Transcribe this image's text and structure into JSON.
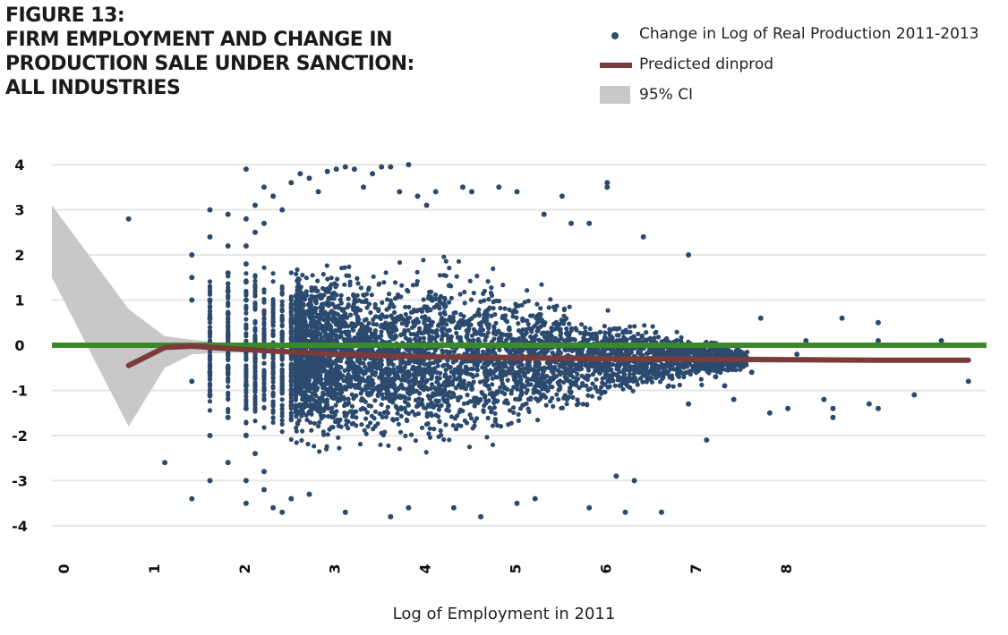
{
  "title_lines": [
    "FIGURE 13:",
    "FIRM EMPLOYMENT AND CHANGE IN",
    "PRODUCTION SALE UNDER SANCTION:",
    "ALL INDUSTRIES"
  ],
  "legend": [
    {
      "label": "Change in Log of Real Production 2011-2013",
      "kind": "dot",
      "color": "#2c4a6e"
    },
    {
      "label": "Predicted dinprod",
      "kind": "line",
      "color": "#7a3b3b"
    },
    {
      "label": "95% CI",
      "kind": "band",
      "color": "#c8c8c8"
    }
  ],
  "colors": {
    "scatter": "#2c4a6e",
    "fit": "#7a3b3b",
    "ci": "#c8c8c8",
    "zero_line": "#3a8a2a",
    "grid": "#e6e6e6"
  },
  "chart_data": {
    "type": "scatter",
    "xlabel": "Log of Employment in 2011",
    "ylabel": "",
    "xlim": [
      -0.15,
      10.2
    ],
    "ylim": [
      -4.2,
      4.2
    ],
    "x_ticks": [
      0,
      1,
      2,
      3,
      4,
      5,
      6,
      7,
      8
    ],
    "y_ticks": [
      4,
      3,
      2,
      1,
      0,
      -1,
      -2,
      -3,
      -4
    ],
    "grid": "horizontal",
    "legend_position": "top-right",
    "series": [
      {
        "name": "Change in Log of Real Production 2011-2013",
        "kind": "points",
        "note_density": "dense cloud of several thousand firms between x≈2.5 and x≈6.5 centred slightly below 0",
        "points": [
          [
            0.7,
            2.8
          ],
          [
            1.1,
            -2.6
          ],
          [
            1.4,
            -3.4
          ],
          [
            1.4,
            2.0
          ],
          [
            1.4,
            1.5
          ],
          [
            1.4,
            1.0
          ],
          [
            1.4,
            -0.8
          ],
          [
            1.6,
            3.0
          ],
          [
            1.6,
            2.4
          ],
          [
            1.6,
            1.0
          ],
          [
            1.6,
            0.6
          ],
          [
            1.6,
            -0.6
          ],
          [
            1.6,
            -1.1
          ],
          [
            1.6,
            -2.0
          ],
          [
            1.6,
            -3.0
          ],
          [
            1.8,
            2.9
          ],
          [
            1.8,
            2.2
          ],
          [
            1.8,
            1.6
          ],
          [
            1.8,
            1.2
          ],
          [
            1.8,
            0.7
          ],
          [
            1.8,
            -0.5
          ],
          [
            1.8,
            -1.6
          ],
          [
            1.8,
            -2.6
          ],
          [
            2.0,
            3.9
          ],
          [
            2.0,
            2.8
          ],
          [
            2.0,
            2.2
          ],
          [
            2.0,
            1.8
          ],
          [
            2.0,
            1.4
          ],
          [
            2.0,
            1.0
          ],
          [
            2.0,
            -0.9
          ],
          [
            2.0,
            -1.4
          ],
          [
            2.0,
            -2.0
          ],
          [
            2.0,
            -3.0
          ],
          [
            2.0,
            -3.5
          ],
          [
            2.1,
            3.1
          ],
          [
            2.1,
            2.5
          ],
          [
            2.1,
            -2.4
          ],
          [
            2.2,
            3.5
          ],
          [
            2.2,
            2.7
          ],
          [
            2.2,
            -2.8
          ],
          [
            2.2,
            -3.2
          ],
          [
            2.3,
            3.3
          ],
          [
            2.3,
            -3.6
          ],
          [
            2.4,
            3.0
          ],
          [
            2.4,
            -3.7
          ],
          [
            2.5,
            3.6
          ],
          [
            2.5,
            -3.4
          ],
          [
            2.6,
            3.8
          ],
          [
            2.7,
            3.7
          ],
          [
            2.7,
            -3.3
          ],
          [
            2.8,
            3.4
          ],
          [
            2.9,
            3.85
          ],
          [
            3.0,
            3.9
          ],
          [
            3.1,
            3.95
          ],
          [
            3.1,
            -3.7
          ],
          [
            3.2,
            3.9
          ],
          [
            3.3,
            3.5
          ],
          [
            3.4,
            3.8
          ],
          [
            3.5,
            3.95
          ],
          [
            3.6,
            3.95
          ],
          [
            3.7,
            3.4
          ],
          [
            3.8,
            4.0
          ],
          [
            3.6,
            -3.8
          ],
          [
            3.8,
            -3.6
          ],
          [
            3.9,
            3.3
          ],
          [
            4.0,
            3.1
          ],
          [
            4.1,
            3.4
          ],
          [
            4.3,
            -3.6
          ],
          [
            4.4,
            3.5
          ],
          [
            4.5,
            3.4
          ],
          [
            4.6,
            -3.8
          ],
          [
            4.8,
            3.5
          ],
          [
            5.0,
            3.4
          ],
          [
            5.0,
            -3.5
          ],
          [
            5.2,
            -3.4
          ],
          [
            5.3,
            2.9
          ],
          [
            5.5,
            3.3
          ],
          [
            5.6,
            2.7
          ],
          [
            5.8,
            2.7
          ],
          [
            5.8,
            -3.6
          ],
          [
            6.0,
            3.6
          ],
          [
            6.0,
            3.5
          ],
          [
            6.1,
            -2.9
          ],
          [
            6.2,
            -3.7
          ],
          [
            6.3,
            -3.0
          ],
          [
            6.4,
            2.4
          ],
          [
            6.6,
            -3.7
          ],
          [
            6.9,
            2.0
          ],
          [
            6.9,
            -1.3
          ],
          [
            7.1,
            -2.1
          ],
          [
            7.2,
            -0.7
          ],
          [
            7.3,
            -0.9
          ],
          [
            7.4,
            -1.2
          ],
          [
            7.6,
            -0.6
          ],
          [
            7.7,
            0.6
          ],
          [
            7.8,
            -1.5
          ],
          [
            8.0,
            -1.4
          ],
          [
            8.1,
            -0.2
          ],
          [
            8.2,
            0.1
          ],
          [
            8.4,
            -1.2
          ],
          [
            8.5,
            -1.6
          ],
          [
            8.5,
            -1.4
          ],
          [
            8.6,
            0.6
          ],
          [
            8.9,
            -1.3
          ],
          [
            9.0,
            0.5
          ],
          [
            9.0,
            0.1
          ],
          [
            9.0,
            -1.4
          ],
          [
            9.4,
            -1.1
          ],
          [
            9.7,
            0.1
          ],
          [
            10.0,
            -0.8
          ]
        ]
      },
      {
        "name": "Predicted dinprod",
        "kind": "line",
        "x": [
          0.7,
          1.1,
          1.4,
          2.0,
          3.0,
          4.0,
          5.0,
          6.0,
          7.0,
          8.0,
          9.0,
          10.0
        ],
        "y": [
          -0.45,
          -0.05,
          -0.02,
          -0.1,
          -0.2,
          -0.26,
          -0.28,
          -0.3,
          -0.31,
          -0.32,
          -0.33,
          -0.33
        ]
      },
      {
        "name": "95% CI",
        "kind": "band",
        "x": [
          -0.15,
          0.7,
          1.1,
          1.4,
          2.0,
          3.0,
          10.0
        ],
        "upper": [
          3.1,
          0.8,
          0.2,
          0.12,
          0.0,
          -0.15,
          -0.3
        ],
        "lower": [
          1.5,
          -1.8,
          -0.5,
          -0.2,
          -0.15,
          -0.25,
          -0.36
        ]
      }
    ]
  }
}
